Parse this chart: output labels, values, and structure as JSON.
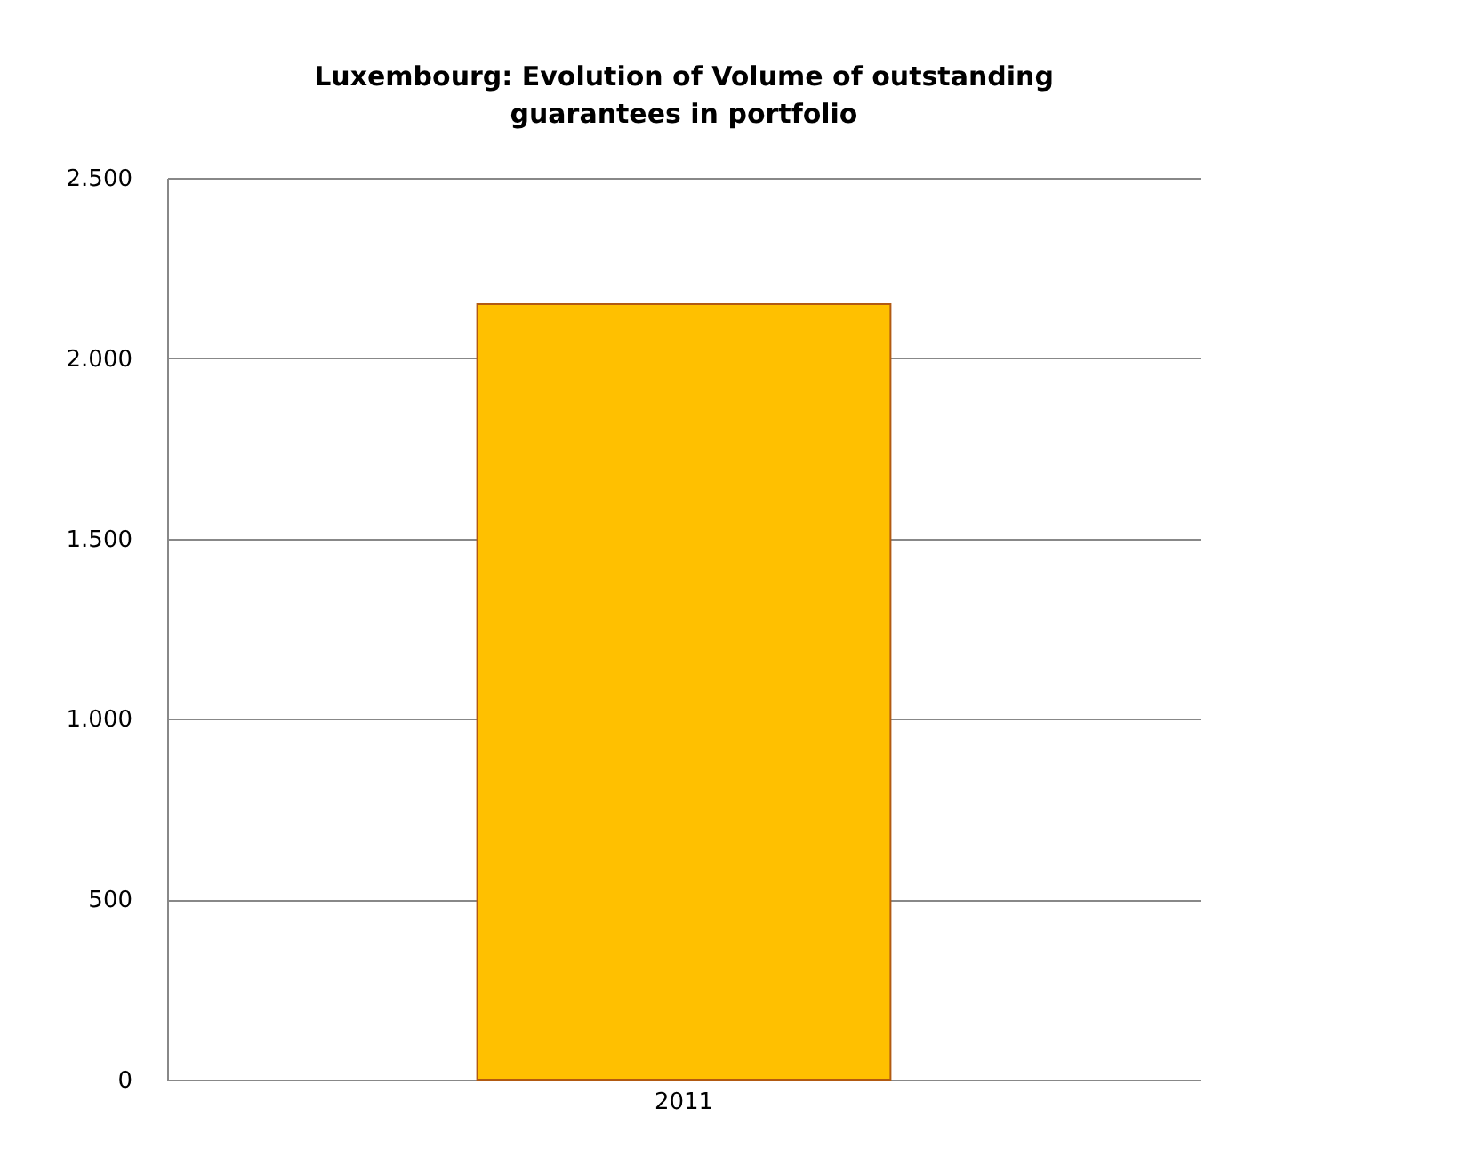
{
  "chart_data": {
    "type": "bar",
    "title": [
      "Luxembourg: Evolution of Volume of outstanding",
      "guarantees  in portfolio"
    ],
    "categories": [
      "2011"
    ],
    "values": [
      2150
    ],
    "colors": [
      "#ffc000"
    ],
    "ylim": [
      0,
      2500
    ],
    "yticks": [
      {
        "value": 0,
        "label": "0"
      },
      {
        "value": 500,
        "label": "500"
      },
      {
        "value": 1000,
        "label": "1.000"
      },
      {
        "value": 1500,
        "label": "1.500"
      },
      {
        "value": 2000,
        "label": "2.000"
      },
      {
        "value": 2500,
        "label": "2.500"
      }
    ],
    "grid": "y"
  }
}
